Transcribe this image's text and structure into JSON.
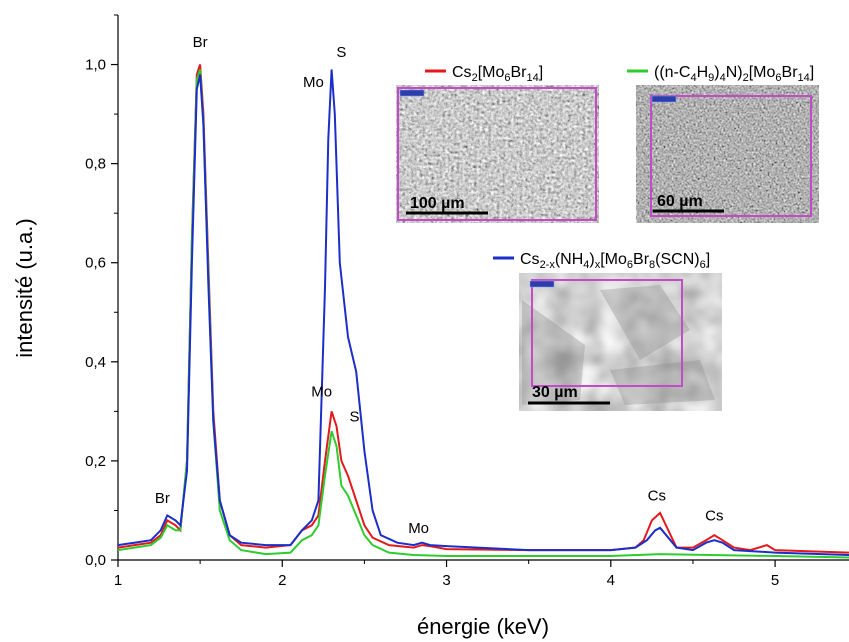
{
  "chart_data": {
    "type": "line",
    "xlabel": "énergie (keV)",
    "ylabel": "intensité (u.a.)",
    "xlim": [
      1.0,
      5.45
    ],
    "ylim": [
      0.0,
      1.1
    ],
    "x_ticks": [
      "1",
      "2",
      "3",
      "4",
      "5"
    ],
    "y_ticks": [
      "0,0",
      "0,2",
      "0,4",
      "0,6",
      "0,8",
      "1,0"
    ],
    "grid": false,
    "series": [
      {
        "name": "Cs2[Mo6Br14]",
        "color": "#e31a1c",
        "points": [
          [
            1.0,
            0.025
          ],
          [
            1.1,
            0.03
          ],
          [
            1.2,
            0.035
          ],
          [
            1.26,
            0.05
          ],
          [
            1.3,
            0.08
          ],
          [
            1.35,
            0.07
          ],
          [
            1.38,
            0.06
          ],
          [
            1.42,
            0.2
          ],
          [
            1.45,
            0.65
          ],
          [
            1.48,
            0.98
          ],
          [
            1.5,
            1.0
          ],
          [
            1.52,
            0.9
          ],
          [
            1.55,
            0.6
          ],
          [
            1.58,
            0.3
          ],
          [
            1.62,
            0.12
          ],
          [
            1.68,
            0.05
          ],
          [
            1.75,
            0.03
          ],
          [
            1.9,
            0.025
          ],
          [
            2.05,
            0.03
          ],
          [
            2.12,
            0.06
          ],
          [
            2.18,
            0.07
          ],
          [
            2.22,
            0.09
          ],
          [
            2.26,
            0.2
          ],
          [
            2.3,
            0.3
          ],
          [
            2.33,
            0.27
          ],
          [
            2.36,
            0.2
          ],
          [
            2.4,
            0.17
          ],
          [
            2.45,
            0.12
          ],
          [
            2.5,
            0.07
          ],
          [
            2.55,
            0.045
          ],
          [
            2.65,
            0.03
          ],
          [
            2.8,
            0.025
          ],
          [
            2.85,
            0.03
          ],
          [
            2.9,
            0.028
          ],
          [
            3.0,
            0.022
          ],
          [
            3.5,
            0.02
          ],
          [
            4.0,
            0.02
          ],
          [
            4.15,
            0.025
          ],
          [
            4.2,
            0.04
          ],
          [
            4.25,
            0.08
          ],
          [
            4.3,
            0.095
          ],
          [
            4.35,
            0.06
          ],
          [
            4.4,
            0.025
          ],
          [
            4.5,
            0.025
          ],
          [
            4.58,
            0.04
          ],
          [
            4.63,
            0.05
          ],
          [
            4.68,
            0.04
          ],
          [
            4.75,
            0.025
          ],
          [
            4.85,
            0.02
          ],
          [
            4.95,
            0.03
          ],
          [
            5.0,
            0.02
          ],
          [
            5.45,
            0.015
          ]
        ]
      },
      {
        "name": "((n-C4H9)4N)2[Mo6Br14]",
        "color": "#2ecc2e",
        "points": [
          [
            1.0,
            0.02
          ],
          [
            1.1,
            0.025
          ],
          [
            1.2,
            0.03
          ],
          [
            1.26,
            0.045
          ],
          [
            1.3,
            0.07
          ],
          [
            1.35,
            0.06
          ],
          [
            1.38,
            0.06
          ],
          [
            1.42,
            0.2
          ],
          [
            1.45,
            0.64
          ],
          [
            1.48,
            0.97
          ],
          [
            1.5,
            0.99
          ],
          [
            1.52,
            0.88
          ],
          [
            1.55,
            0.58
          ],
          [
            1.58,
            0.28
          ],
          [
            1.62,
            0.1
          ],
          [
            1.68,
            0.04
          ],
          [
            1.75,
            0.02
          ],
          [
            1.9,
            0.012
          ],
          [
            2.05,
            0.015
          ],
          [
            2.12,
            0.04
          ],
          [
            2.18,
            0.05
          ],
          [
            2.22,
            0.07
          ],
          [
            2.26,
            0.17
          ],
          [
            2.3,
            0.26
          ],
          [
            2.33,
            0.23
          ],
          [
            2.36,
            0.15
          ],
          [
            2.4,
            0.13
          ],
          [
            2.45,
            0.09
          ],
          [
            2.5,
            0.05
          ],
          [
            2.55,
            0.03
          ],
          [
            2.65,
            0.015
          ],
          [
            2.8,
            0.01
          ],
          [
            3.0,
            0.008
          ],
          [
            3.5,
            0.008
          ],
          [
            4.0,
            0.008
          ],
          [
            4.3,
            0.012
          ],
          [
            4.6,
            0.01
          ],
          [
            5.0,
            0.008
          ],
          [
            5.45,
            0.005
          ]
        ]
      },
      {
        "name": "Cs2-x(NH4)x[Mo6Br8(SCN)6]",
        "color": "#1c2ec8",
        "points": [
          [
            1.0,
            0.03
          ],
          [
            1.1,
            0.035
          ],
          [
            1.2,
            0.04
          ],
          [
            1.26,
            0.06
          ],
          [
            1.3,
            0.09
          ],
          [
            1.35,
            0.08
          ],
          [
            1.38,
            0.07
          ],
          [
            1.42,
            0.18
          ],
          [
            1.45,
            0.6
          ],
          [
            1.48,
            0.95
          ],
          [
            1.5,
            0.98
          ],
          [
            1.52,
            0.88
          ],
          [
            1.55,
            0.56
          ],
          [
            1.58,
            0.28
          ],
          [
            1.62,
            0.12
          ],
          [
            1.68,
            0.05
          ],
          [
            1.75,
            0.035
          ],
          [
            1.9,
            0.03
          ],
          [
            2.05,
            0.03
          ],
          [
            2.12,
            0.06
          ],
          [
            2.18,
            0.08
          ],
          [
            2.22,
            0.12
          ],
          [
            2.26,
            0.55
          ],
          [
            2.28,
            0.85
          ],
          [
            2.3,
            0.99
          ],
          [
            2.32,
            0.9
          ],
          [
            2.35,
            0.6
          ],
          [
            2.4,
            0.45
          ],
          [
            2.45,
            0.38
          ],
          [
            2.5,
            0.22
          ],
          [
            2.55,
            0.1
          ],
          [
            2.6,
            0.05
          ],
          [
            2.7,
            0.035
          ],
          [
            2.8,
            0.03
          ],
          [
            2.85,
            0.035
          ],
          [
            2.9,
            0.03
          ],
          [
            3.0,
            0.028
          ],
          [
            3.5,
            0.02
          ],
          [
            4.0,
            0.02
          ],
          [
            4.15,
            0.025
          ],
          [
            4.22,
            0.04
          ],
          [
            4.27,
            0.06
          ],
          [
            4.3,
            0.065
          ],
          [
            4.35,
            0.045
          ],
          [
            4.4,
            0.025
          ],
          [
            4.5,
            0.02
          ],
          [
            4.58,
            0.035
          ],
          [
            4.63,
            0.04
          ],
          [
            4.68,
            0.035
          ],
          [
            4.75,
            0.02
          ],
          [
            4.85,
            0.018
          ],
          [
            5.0,
            0.015
          ],
          [
            5.45,
            0.01
          ]
        ]
      }
    ],
    "annotations": [
      {
        "text": "Br",
        "x": 1.5,
        "y": 1.035
      },
      {
        "text": "Mo",
        "x": 2.19,
        "y": 0.955
      },
      {
        "text": "S",
        "x": 2.36,
        "y": 1.015
      },
      {
        "text": "Mo",
        "x": 2.24,
        "y": 0.33
      },
      {
        "text": "S",
        "x": 2.44,
        "y": 0.28
      },
      {
        "text": "Br",
        "x": 1.27,
        "y": 0.115
      },
      {
        "text": "Mo",
        "x": 2.83,
        "y": 0.055
      },
      {
        "text": "Cs",
        "x": 4.28,
        "y": 0.12
      },
      {
        "text": "Cs",
        "x": 4.63,
        "y": 0.08
      }
    ]
  },
  "insets": [
    {
      "legend_color": "#e31a1c",
      "scale_bar": "100 µm"
    },
    {
      "legend_color": "#2ecc2e",
      "scale_bar": "60 µm"
    },
    {
      "legend_color": "#1c2ec8",
      "scale_bar": "30 µm"
    }
  ],
  "legend_parts": {
    "l1": {
      "a": "Cs",
      "b": "2",
      "c": "[Mo",
      "d": "6",
      "e": "Br",
      "f": "14",
      "g": "]"
    },
    "l2": {
      "a": "((n-C",
      "b": "4",
      "c": "H",
      "d": "9",
      "e": ")",
      "f": "4",
      "g": "N)",
      "h": "2",
      "i": "[Mo",
      "j": "6",
      "k": "Br",
      "l": "14",
      "m": "]"
    },
    "l3": {
      "a": "Cs",
      "b": "2-x",
      "c": "(NH",
      "d": "4",
      "e": ")",
      "f": "x",
      "g": "[Mo",
      "h": "6",
      "i": "Br",
      "j": "8",
      "k": "(SCN)",
      "l": "6",
      "m": "]"
    }
  }
}
